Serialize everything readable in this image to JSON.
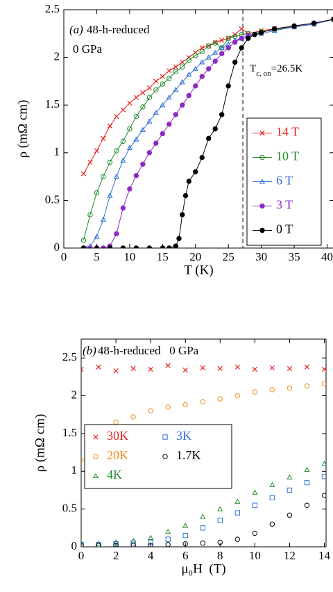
{
  "chart_data": [
    {
      "type": "line",
      "panel_label": "(a)",
      "title": "48-h-reduced",
      "subtitle": "0 GPa",
      "x_label": "T (K)",
      "y_label": "ρ (mΩ cm)",
      "xlim": [
        0,
        41
      ],
      "ylim": [
        0,
        2.5
      ],
      "xticks": [
        0,
        5,
        10,
        15,
        20,
        25,
        30,
        35,
        40
      ],
      "yticks": [
        0,
        0.5,
        1,
        1.5,
        2,
        2.5
      ],
      "legend": "lower right",
      "legend_columns": 1,
      "annotations": [
        {
          "text": "T",
          "sub": "c, on",
          "tail": "=26.5K",
          "x": 27.2
        }
      ],
      "series": [
        {
          "name": "14 T",
          "color": "#e8211d",
          "marker": "x",
          "x": [
            3,
            4,
            5,
            6,
            7,
            8,
            9,
            10,
            11,
            12,
            13,
            14,
            15,
            16,
            17,
            18,
            19,
            20,
            21,
            22,
            23,
            24,
            25,
            26,
            27,
            28,
            30,
            32,
            35,
            38,
            41
          ],
          "values": [
            0.78,
            0.9,
            1.02,
            1.15,
            1.28,
            1.38,
            1.45,
            1.52,
            1.58,
            1.63,
            1.68,
            1.75,
            1.8,
            1.86,
            1.9,
            1.95,
            2.0,
            2.05,
            2.1,
            2.12,
            2.16,
            2.18,
            2.2,
            2.24,
            2.3,
            2.25,
            2.28,
            2.3,
            2.32,
            2.35,
            2.4
          ]
        },
        {
          "name": "10 T",
          "color": "#1e8a2a",
          "marker": "circle-open",
          "x": [
            3,
            4,
            5,
            6,
            7,
            8,
            9,
            10,
            11,
            12,
            13,
            14,
            15,
            16,
            17,
            18,
            19,
            20,
            21,
            22,
            23,
            24,
            25,
            26,
            27,
            28,
            30,
            32,
            35,
            38,
            41
          ],
          "values": [
            0.08,
            0.35,
            0.58,
            0.75,
            0.9,
            1.02,
            1.12,
            1.25,
            1.38,
            1.48,
            1.58,
            1.66,
            1.72,
            1.78,
            1.85,
            1.9,
            1.97,
            2.02,
            2.06,
            2.12,
            2.15,
            2.1,
            2.2,
            2.22,
            2.24,
            2.25,
            2.27,
            2.29,
            2.32,
            2.35,
            2.4
          ]
        },
        {
          "name": "6 T",
          "color": "#2f6fd6",
          "marker": "triangle-open",
          "x": [
            3.5,
            4,
            5,
            6,
            7,
            8,
            9,
            10,
            11,
            12,
            13,
            14,
            15,
            16,
            17,
            18,
            19,
            20,
            21,
            22,
            23,
            24,
            25,
            26,
            27,
            28,
            30,
            32,
            35,
            38,
            41
          ],
          "values": [
            0,
            0.02,
            0.12,
            0.3,
            0.55,
            0.75,
            0.92,
            1.05,
            1.14,
            1.24,
            1.33,
            1.42,
            1.5,
            1.58,
            1.66,
            1.74,
            1.82,
            1.88,
            1.95,
            2.0,
            2.05,
            2.1,
            2.14,
            2.18,
            2.2,
            2.22,
            2.25,
            2.28,
            2.32,
            2.35,
            2.4
          ]
        },
        {
          "name": "3 T",
          "color": "#8e2bc4",
          "marker": "circle",
          "x": [
            3,
            4,
            5,
            6,
            7,
            8,
            9,
            10,
            11,
            12,
            13,
            14,
            15,
            16,
            17,
            18,
            19,
            20,
            21,
            22,
            23,
            24,
            25,
            26,
            27,
            28,
            30,
            32,
            35,
            38,
            41
          ],
          "values": [
            0,
            0,
            0,
            0,
            0.02,
            0.15,
            0.42,
            0.62,
            0.76,
            0.88,
            1.0,
            1.1,
            1.2,
            1.3,
            1.4,
            1.5,
            1.6,
            1.7,
            1.8,
            1.88,
            1.96,
            2.04,
            2.1,
            2.16,
            2.2,
            2.23,
            2.26,
            2.3,
            2.33,
            2.36,
            2.4
          ]
        },
        {
          "name": "0 T",
          "color": "#000000",
          "marker": "circle",
          "x": [
            3,
            5,
            7,
            9,
            11,
            13,
            15,
            16,
            17,
            17.5,
            18,
            18.5,
            19,
            20,
            21,
            22,
            23,
            24,
            25,
            26,
            27,
            28,
            29,
            30,
            32,
            35,
            38,
            41
          ],
          "values": [
            0,
            0,
            0,
            0,
            0,
            0,
            0,
            0,
            0.02,
            0.1,
            0.35,
            0.55,
            0.7,
            0.8,
            0.95,
            1.15,
            1.25,
            1.4,
            1.7,
            1.95,
            2.1,
            2.2,
            2.24,
            2.26,
            2.3,
            2.33,
            2.36,
            2.4
          ]
        }
      ]
    },
    {
      "type": "scatter",
      "panel_label": "(b)",
      "title": "48-h-reduced   0 GPa",
      "x_label": "μ₀H  (T)",
      "y_label": "ρ (mΩ cm)",
      "xlim": [
        0,
        14.1
      ],
      "ylim": [
        0,
        2.75
      ],
      "xticks": [
        0,
        2,
        4,
        6,
        8,
        10,
        12,
        14
      ],
      "yticks": [
        0,
        0.5,
        1,
        1.5,
        2,
        2.5
      ],
      "legend": "center left",
      "legend_columns": 2,
      "x": [
        0,
        1,
        2,
        3,
        4,
        5,
        6,
        7,
        8,
        9,
        10,
        11,
        12,
        13,
        14
      ],
      "series": [
        {
          "name": "30K",
          "color": "#e8211d",
          "marker": "x",
          "values": [
            2.35,
            2.38,
            2.33,
            2.36,
            2.35,
            2.4,
            2.34,
            2.37,
            2.36,
            2.38,
            2.35,
            2.37,
            2.36,
            2.38,
            2.35
          ]
        },
        {
          "name": "20K",
          "color": "#f08a1c",
          "marker": "circle-open",
          "values": [
            1.15,
            1.55,
            1.65,
            1.72,
            1.8,
            1.85,
            1.88,
            1.92,
            1.96,
            2.0,
            2.05,
            2.08,
            2.1,
            2.13,
            2.16
          ]
        },
        {
          "name": "4K",
          "color": "#1e8a2a",
          "marker": "triangle-open",
          "values": [
            0.05,
            0.04,
            0.06,
            0.08,
            0.12,
            0.2,
            0.28,
            0.4,
            0.5,
            0.6,
            0.72,
            0.82,
            0.92,
            1.02,
            1.1
          ]
        },
        {
          "name": "3K",
          "color": "#2f6fd6",
          "marker": "square-open",
          "values": [
            0.03,
            0.03,
            0.04,
            0.05,
            0.06,
            0.1,
            0.15,
            0.25,
            0.35,
            0.45,
            0.55,
            0.65,
            0.75,
            0.85,
            0.93
          ]
        },
        {
          "name": "1.7K",
          "color": "#000000",
          "marker": "circle-open",
          "values": [
            0.02,
            0.02,
            0.02,
            0.02,
            0.02,
            0.03,
            0.04,
            0.05,
            0.06,
            0.1,
            0.18,
            0.3,
            0.42,
            0.55,
            0.68
          ]
        }
      ]
    }
  ]
}
